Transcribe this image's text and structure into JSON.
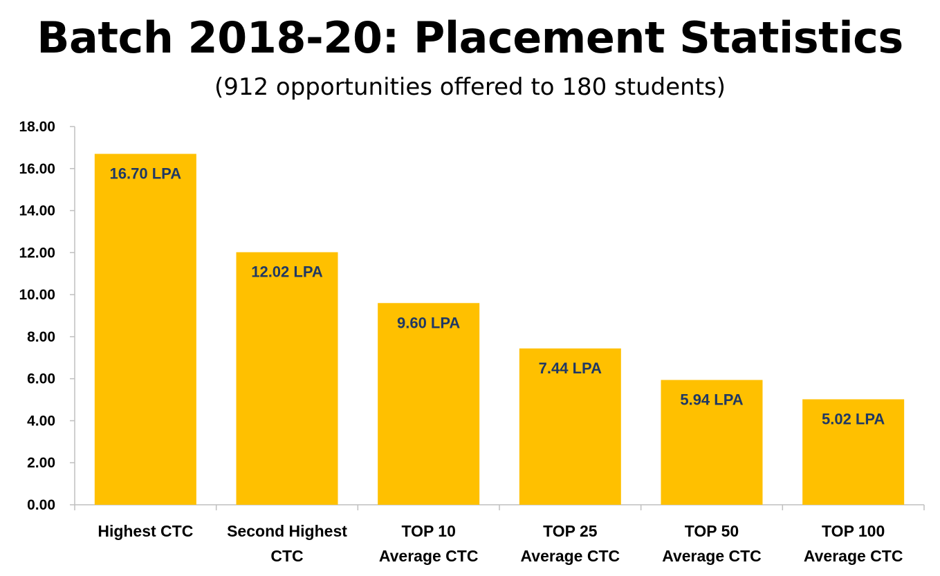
{
  "chart_data": {
    "type": "bar",
    "title": "Batch 2018-20: Placement Statistics",
    "subtitle": "(912 opportunities offered to 180 students)",
    "categories": [
      [
        "Highest CTC"
      ],
      [
        "Second Highest",
        "CTC"
      ],
      [
        "TOP 10",
        "Average CTC"
      ],
      [
        "TOP 25",
        "Average CTC"
      ],
      [
        "TOP 50",
        "Average CTC"
      ],
      [
        "TOP 100",
        "Average CTC"
      ]
    ],
    "values": [
      16.7,
      12.02,
      9.6,
      7.44,
      5.94,
      5.02
    ],
    "data_labels": [
      "16.70 LPA",
      "12.02 LPA",
      "9.60 LPA",
      "7.44 LPA",
      "5.94 LPA",
      "5.02 LPA"
    ],
    "ylim": [
      0,
      18
    ],
    "yticks": [
      "0.00",
      "2.00",
      "4.00",
      "6.00",
      "8.00",
      "10.00",
      "12.00",
      "14.00",
      "16.00",
      "18.00"
    ],
    "grid": false,
    "legend": "none",
    "colors": {
      "bar": "#FFC000",
      "data_label": "#1F3864",
      "axis": "#BFBFBF"
    }
  }
}
